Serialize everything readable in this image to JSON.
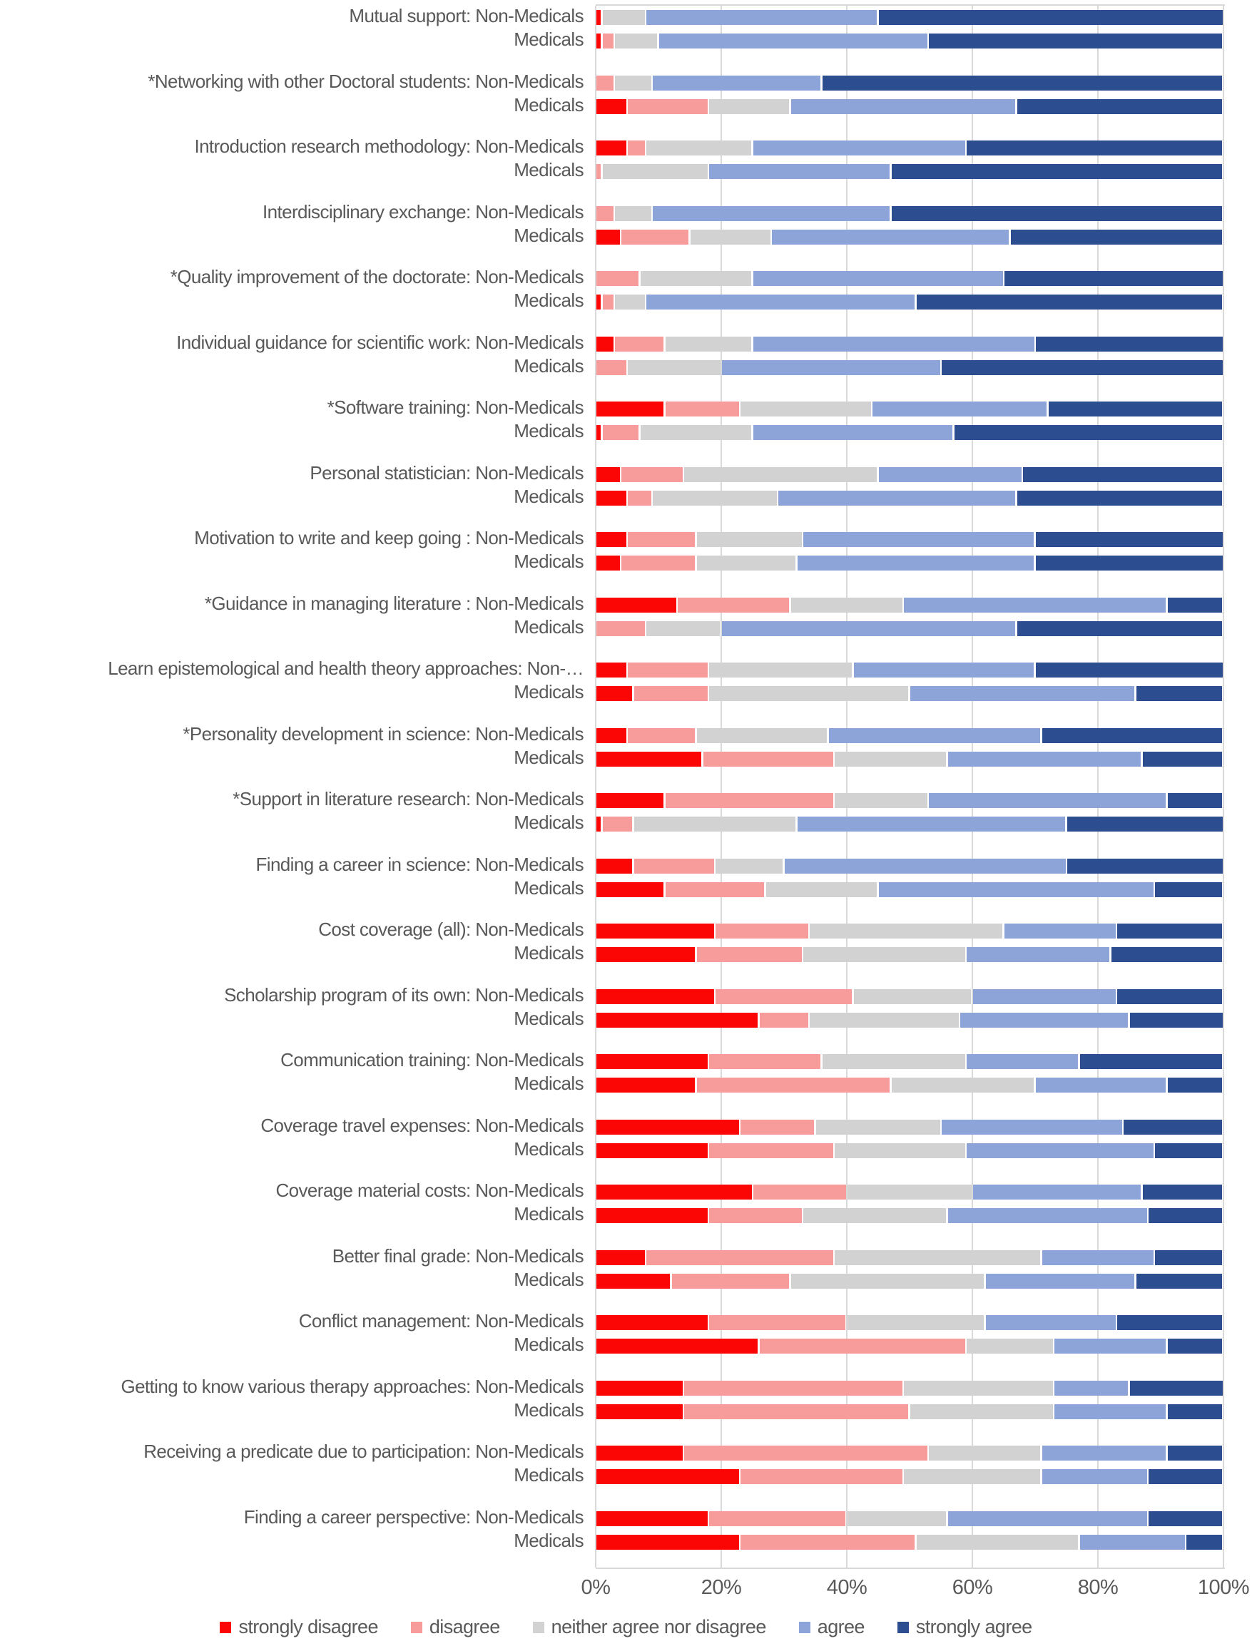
{
  "chart_data": {
    "type": "bar",
    "orientation": "horizontal",
    "stacked": true,
    "unit": "percent of respondents",
    "title": "",
    "xlabel": "",
    "ylabel": "",
    "xlim": [
      0,
      100
    ],
    "x_ticks": [
      "0%",
      "20%",
      "40%",
      "60%",
      "80%",
      "100%"
    ],
    "x_tick_values": [
      0,
      20,
      40,
      60,
      80,
      100
    ],
    "grid": true,
    "legend_position": "bottom",
    "series_names": [
      "strongly disagree",
      "disagree",
      "neither agree nor disagree",
      "agree",
      "strongly agree"
    ],
    "series_colors": [
      "#fb0505",
      "#f89b9b",
      "#d2d2d2",
      "#8ca4d8",
      "#2c4d8f"
    ],
    "group_row_labels": [
      "Non-Medicals",
      "Medicals"
    ],
    "categories": [
      {
        "label_top": "Mutual support: Non-Medicals",
        "label_bottom": "Medicals",
        "values_top": [
          1,
          0,
          7,
          37,
          55
        ],
        "values_bottom": [
          1,
          2,
          7,
          43,
          47
        ]
      },
      {
        "label_top": "*Networking with other Doctoral students: Non-Medicals",
        "label_bottom": "Medicals",
        "values_top": [
          0,
          3,
          6,
          27,
          64
        ],
        "values_bottom": [
          5,
          13,
          13,
          36,
          33
        ]
      },
      {
        "label_top": "Introduction research methodology: Non-Medicals",
        "label_bottom": "Medicals",
        "values_top": [
          5,
          3,
          17,
          34,
          41
        ],
        "values_bottom": [
          0,
          1,
          17,
          29,
          53
        ]
      },
      {
        "label_top": "Interdisciplinary exchange: Non-Medicals",
        "label_bottom": "Medicals",
        "values_top": [
          0,
          3,
          6,
          38,
          53
        ],
        "values_bottom": [
          4,
          11,
          13,
          38,
          34
        ]
      },
      {
        "label_top": "*Quality improvement of the doctorate: Non-Medicals",
        "label_bottom": "Medicals",
        "values_top": [
          0,
          7,
          18,
          40,
          35
        ],
        "values_bottom": [
          1,
          2,
          5,
          43,
          49
        ]
      },
      {
        "label_top": "Individual guidance for scientific work: Non-Medicals",
        "label_bottom": "Medicals",
        "values_top": [
          3,
          8,
          14,
          45,
          30
        ],
        "values_bottom": [
          0,
          5,
          15,
          35,
          45
        ]
      },
      {
        "label_top": "*Software training: Non-Medicals",
        "label_bottom": "Medicals",
        "values_top": [
          11,
          12,
          21,
          28,
          28
        ],
        "values_bottom": [
          1,
          6,
          18,
          32,
          43
        ]
      },
      {
        "label_top": "Personal statistician: Non-Medicals",
        "label_bottom": "Medicals",
        "values_top": [
          4,
          10,
          31,
          23,
          32
        ],
        "values_bottom": [
          5,
          4,
          20,
          38,
          33
        ]
      },
      {
        "label_top": "Motivation to write and keep going : Non-Medicals",
        "label_bottom": "Medicals",
        "values_top": [
          5,
          11,
          17,
          37,
          30
        ],
        "values_bottom": [
          4,
          12,
          16,
          38,
          30
        ]
      },
      {
        "label_top": "*Guidance in managing literature : Non-Medicals",
        "label_bottom": "Medicals",
        "values_top": [
          13,
          18,
          18,
          42,
          9
        ],
        "values_bottom": [
          0,
          8,
          12,
          47,
          33
        ]
      },
      {
        "label_top": "Learn epistemological and health theory approaches: Non-…",
        "label_bottom": "Medicals",
        "values_top": [
          5,
          13,
          23,
          29,
          30
        ],
        "values_bottom": [
          6,
          12,
          32,
          36,
          14
        ]
      },
      {
        "label_top": "*Personality development in science: Non-Medicals",
        "label_bottom": "Medicals",
        "values_top": [
          5,
          11,
          21,
          34,
          29
        ],
        "values_bottom": [
          17,
          21,
          18,
          31,
          13
        ]
      },
      {
        "label_top": "*Support in literature research: Non-Medicals",
        "label_bottom": "Medicals",
        "values_top": [
          11,
          27,
          15,
          38,
          9
        ],
        "values_bottom": [
          1,
          5,
          26,
          43,
          25
        ]
      },
      {
        "label_top": "Finding a career in science: Non-Medicals",
        "label_bottom": "Medicals",
        "values_top": [
          6,
          13,
          11,
          45,
          25
        ],
        "values_bottom": [
          11,
          16,
          18,
          44,
          11
        ]
      },
      {
        "label_top": "Cost coverage (all): Non-Medicals",
        "label_bottom": "Medicals",
        "values_top": [
          19,
          15,
          31,
          18,
          17
        ],
        "values_bottom": [
          16,
          17,
          26,
          23,
          18
        ]
      },
      {
        "label_top": "Scholarship program of its own: Non-Medicals",
        "label_bottom": "Medicals",
        "values_top": [
          19,
          22,
          19,
          23,
          17
        ],
        "values_bottom": [
          26,
          8,
          24,
          27,
          15
        ]
      },
      {
        "label_top": "Communication training: Non-Medicals",
        "label_bottom": "Medicals",
        "values_top": [
          18,
          18,
          23,
          18,
          23
        ],
        "values_bottom": [
          16,
          31,
          23,
          21,
          9
        ]
      },
      {
        "label_top": "Coverage travel expenses: Non-Medicals",
        "label_bottom": "Medicals",
        "values_top": [
          23,
          12,
          20,
          29,
          16
        ],
        "values_bottom": [
          18,
          20,
          21,
          30,
          11
        ]
      },
      {
        "label_top": "Coverage material costs: Non-Medicals",
        "label_bottom": "Medicals",
        "values_top": [
          25,
          15,
          20,
          27,
          13
        ],
        "values_bottom": [
          18,
          15,
          23,
          32,
          12
        ]
      },
      {
        "label_top": "Better final grade: Non-Medicals",
        "label_bottom": "Medicals",
        "values_top": [
          8,
          30,
          33,
          18,
          11
        ],
        "values_bottom": [
          12,
          19,
          31,
          24,
          14
        ]
      },
      {
        "label_top": "Conflict management: Non-Medicals",
        "label_bottom": "Medicals",
        "values_top": [
          18,
          22,
          22,
          21,
          17
        ],
        "values_bottom": [
          26,
          33,
          14,
          18,
          9
        ]
      },
      {
        "label_top": "Getting to know various therapy approaches: Non-Medicals",
        "label_bottom": "Medicals",
        "values_top": [
          14,
          35,
          24,
          12,
          15
        ],
        "values_bottom": [
          14,
          36,
          23,
          18,
          9
        ]
      },
      {
        "label_top": "Receiving a predicate due to participation: Non-Medicals",
        "label_bottom": "Medicals",
        "values_top": [
          14,
          39,
          18,
          20,
          9
        ],
        "values_bottom": [
          23,
          26,
          22,
          17,
          12
        ]
      },
      {
        "label_top": "Finding a career perspective: Non-Medicals",
        "label_bottom": "Medicals",
        "values_top": [
          18,
          22,
          16,
          32,
          12
        ],
        "values_bottom": [
          23,
          28,
          26,
          17,
          6
        ]
      }
    ],
    "style": {
      "gridline_color": "#d9d9d9",
      "axis_text_color": "#595959",
      "label_text_color": "#595959",
      "background": "#ffffff"
    }
  }
}
